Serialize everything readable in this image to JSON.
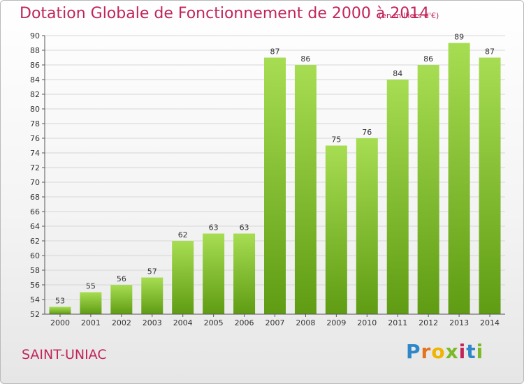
{
  "header": {
    "title": "Dotation Globale de Fonctionnement de 2000 à 2014",
    "unit": "(en milliers d'€)"
  },
  "footer": {
    "commune": "SAINT-UNIAC",
    "logo_text": "Proxiti"
  },
  "colors": {
    "title": "#c2245a",
    "bar_light": "#a7dd52",
    "bar_dark": "#5f9c13",
    "grid": "#d6d6d6"
  },
  "chart_data": {
    "type": "bar",
    "title": "Dotation Globale de Fonctionnement de 2000 à 2014",
    "xlabel": "",
    "ylabel": "",
    "categories": [
      "2000",
      "2001",
      "2002",
      "2003",
      "2004",
      "2005",
      "2006",
      "2007",
      "2008",
      "2009",
      "2010",
      "2011",
      "2012",
      "2013",
      "2014"
    ],
    "values": [
      53,
      55,
      56,
      57,
      62,
      63,
      63,
      87,
      86,
      75,
      76,
      84,
      86,
      89,
      87
    ],
    "ylim": [
      52,
      90
    ],
    "ytick_step": 2,
    "grid": true,
    "legend": "none"
  }
}
